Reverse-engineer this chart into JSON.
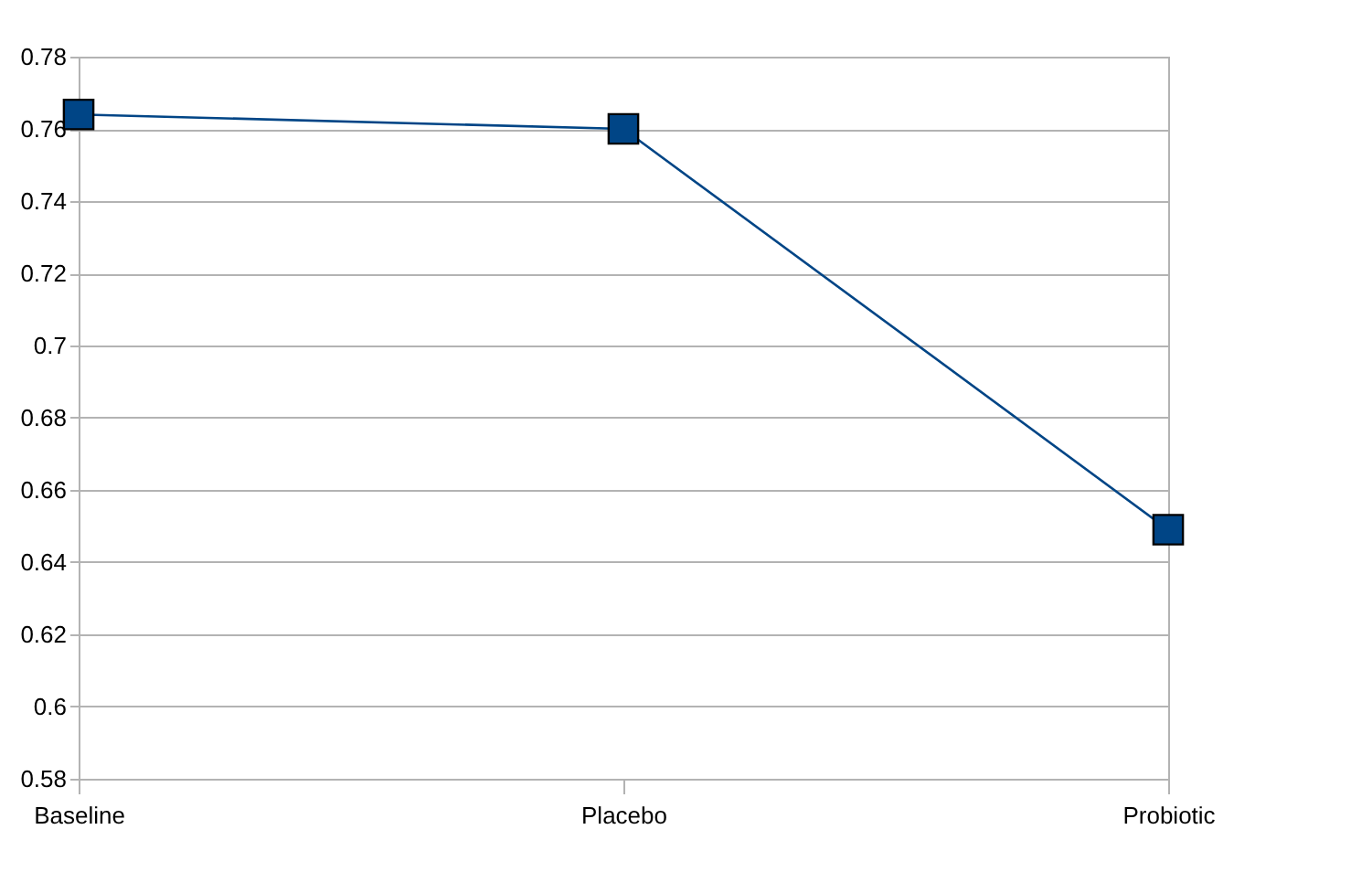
{
  "chart_data": {
    "type": "line",
    "categories": [
      "Baseline",
      "Placebo",
      "Probiotic"
    ],
    "series": [
      {
        "color": "#004586",
        "values": [
          0.764,
          0.76,
          0.649
        ]
      }
    ],
    "ylim": [
      0.58,
      0.78
    ],
    "yticks": [
      0.58,
      0.6,
      0.62,
      0.64,
      0.66,
      0.68,
      0.7,
      0.72,
      0.74,
      0.76,
      0.78
    ],
    "grid": "y",
    "marker": "square",
    "line_style": "solid",
    "legend": false
  }
}
